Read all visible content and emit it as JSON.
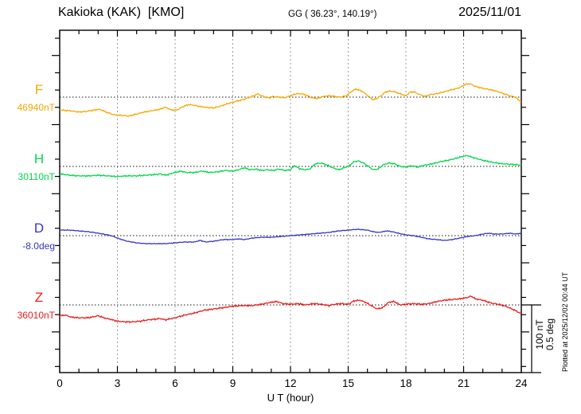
{
  "header": {
    "station_title": "Kakioka (KAK)  [KMO]",
    "coordinates": "GG ( 36.23°, 140.19°)",
    "date": "2025/11/01"
  },
  "chart_data": {
    "type": "line",
    "xlabel": "U T (hour)",
    "x_range": [
      0,
      24
    ],
    "x_ticks": [
      0,
      3,
      6,
      9,
      12,
      15,
      18,
      21,
      24
    ],
    "x_minor_tick_step": 1,
    "grid": "vertical dotted gridlines every 3 hours; dotted horizontal baseline for each trace",
    "scale_bar": {
      "label_line1": "100 nT",
      "label_line2": "0.5 deg",
      "nT_per_bar": 100,
      "deg_per_bar": 0.5
    },
    "series": [
      {
        "name": "F",
        "unit": "nT",
        "baseline_value": 46940,
        "baseline_label": "46940nT",
        "color": "#f7a800",
        "points": [
          [
            0,
            46921
          ],
          [
            0.5,
            46920
          ],
          [
            1,
            46918
          ],
          [
            1.4,
            46919
          ],
          [
            1.8,
            46921
          ],
          [
            2.1,
            46922
          ],
          [
            2.4,
            46918
          ],
          [
            2.8,
            46914
          ],
          [
            3.2,
            46913
          ],
          [
            3.6,
            46912
          ],
          [
            4,
            46915
          ],
          [
            4.4,
            46918
          ],
          [
            4.8,
            46920
          ],
          [
            5.2,
            46922
          ],
          [
            5.5,
            46925
          ],
          [
            5.8,
            46921
          ],
          [
            6.1,
            46921
          ],
          [
            6.4,
            46926
          ],
          [
            6.7,
            46929
          ],
          [
            7,
            46928
          ],
          [
            7.3,
            46926
          ],
          [
            7.6,
            46925
          ],
          [
            8,
            46924
          ],
          [
            8.4,
            46927
          ],
          [
            8.8,
            46931
          ],
          [
            9.2,
            46934
          ],
          [
            9.5,
            46936
          ],
          [
            9.8,
            46939
          ],
          [
            10.1,
            46942
          ],
          [
            10.3,
            46945
          ],
          [
            10.5,
            46942
          ],
          [
            10.7,
            46940
          ],
          [
            10.9,
            46939
          ],
          [
            11.1,
            46941
          ],
          [
            11.4,
            46940
          ],
          [
            11.7,
            46939
          ],
          [
            12,
            46942
          ],
          [
            12.3,
            46945
          ],
          [
            12.6,
            46945
          ],
          [
            12.9,
            46942
          ],
          [
            13.1,
            46939
          ],
          [
            13.4,
            46938
          ],
          [
            13.7,
            46941
          ],
          [
            14,
            46942
          ],
          [
            14.3,
            46941
          ],
          [
            14.6,
            46940
          ],
          [
            14.9,
            46942
          ],
          [
            15.2,
            46949
          ],
          [
            15.4,
            46952
          ],
          [
            15.7,
            46949
          ],
          [
            15.9,
            46945
          ],
          [
            16.1,
            46940
          ],
          [
            16.3,
            46936
          ],
          [
            16.5,
            46938
          ],
          [
            16.7,
            46942
          ],
          [
            16.9,
            46947
          ],
          [
            17.1,
            46949
          ],
          [
            17.4,
            46948
          ],
          [
            17.7,
            46945
          ],
          [
            18,
            46942
          ],
          [
            18.2,
            46947
          ],
          [
            18.4,
            46948
          ],
          [
            18.7,
            46944
          ],
          [
            19,
            46941
          ],
          [
            19.3,
            46944
          ],
          [
            19.6,
            46945
          ],
          [
            20,
            46948
          ],
          [
            20.4,
            46951
          ],
          [
            20.8,
            46954
          ],
          [
            21.1,
            46959
          ],
          [
            21.3,
            46960
          ],
          [
            21.6,
            46956
          ],
          [
            22,
            46953
          ],
          [
            22.4,
            46951
          ],
          [
            22.8,
            46948
          ],
          [
            23.1,
            46945
          ],
          [
            23.4,
            46942
          ],
          [
            23.7,
            46940
          ],
          [
            23.85,
            46936
          ],
          [
            24,
            46933
          ]
        ]
      },
      {
        "name": "H",
        "unit": "nT",
        "baseline_value": 30110,
        "baseline_label": "30110nT",
        "color": "#00d84a",
        "points": [
          [
            0,
            30099
          ],
          [
            0.5,
            30097
          ],
          [
            1,
            30096
          ],
          [
            1.5,
            30096
          ],
          [
            2,
            30097
          ],
          [
            2.5,
            30096
          ],
          [
            3,
            30095
          ],
          [
            3.5,
            30096
          ],
          [
            4,
            30096
          ],
          [
            4.5,
            30097
          ],
          [
            5,
            30098
          ],
          [
            5.2,
            30099
          ],
          [
            5.5,
            30097
          ],
          [
            6,
            30101
          ],
          [
            6.3,
            30103
          ],
          [
            6.6,
            30101
          ],
          [
            7,
            30101
          ],
          [
            7.4,
            30103
          ],
          [
            7.8,
            30101
          ],
          [
            8.2,
            30102
          ],
          [
            8.6,
            30104
          ],
          [
            9,
            30103
          ],
          [
            9.3,
            30105
          ],
          [
            9.6,
            30108
          ],
          [
            9.9,
            30105
          ],
          [
            10.2,
            30106
          ],
          [
            10.5,
            30104
          ],
          [
            10.8,
            30105
          ],
          [
            11.1,
            30104
          ],
          [
            11.4,
            30106
          ],
          [
            11.7,
            30104
          ],
          [
            12,
            30105
          ],
          [
            12.2,
            30111
          ],
          [
            12.45,
            30107
          ],
          [
            12.7,
            30105
          ],
          [
            13,
            30106
          ],
          [
            13.3,
            30114
          ],
          [
            13.6,
            30115
          ],
          [
            13.9,
            30112
          ],
          [
            14.2,
            30108
          ],
          [
            14.5,
            30105
          ],
          [
            14.8,
            30108
          ],
          [
            15.05,
            30111
          ],
          [
            15.3,
            30117
          ],
          [
            15.55,
            30118
          ],
          [
            15.8,
            30115
          ],
          [
            16.05,
            30110
          ],
          [
            16.3,
            30105
          ],
          [
            16.55,
            30106
          ],
          [
            16.8,
            30112
          ],
          [
            17.1,
            30115
          ],
          [
            17.4,
            30114
          ],
          [
            17.7,
            30110
          ],
          [
            18,
            30109
          ],
          [
            18.3,
            30111
          ],
          [
            18.6,
            30109
          ],
          [
            19,
            30112
          ],
          [
            19.4,
            30114
          ],
          [
            19.8,
            30117
          ],
          [
            20.2,
            30119
          ],
          [
            20.6,
            30122
          ],
          [
            21,
            30125
          ],
          [
            21.2,
            30126
          ],
          [
            21.5,
            30123
          ],
          [
            22,
            30119
          ],
          [
            22.5,
            30116
          ],
          [
            23,
            30114
          ],
          [
            23.5,
            30113
          ],
          [
            24,
            30112
          ]
        ]
      },
      {
        "name": "D",
        "unit": "deg",
        "baseline_value": -8.0,
        "baseline_label": "-8.0deg",
        "color": "#3434cc",
        "points": [
          [
            0,
            -7.959
          ],
          [
            0.5,
            -7.959
          ],
          [
            1,
            -7.965
          ],
          [
            1.5,
            -7.971
          ],
          [
            2,
            -7.982
          ],
          [
            2.5,
            -7.994
          ],
          [
            2.8,
            -8.006
          ],
          [
            3,
            -8.018
          ],
          [
            3.5,
            -8.041
          ],
          [
            4,
            -8.053
          ],
          [
            4.5,
            -8.059
          ],
          [
            5,
            -8.059
          ],
          [
            5.5,
            -8.059
          ],
          [
            6,
            -8.053
          ],
          [
            6.5,
            -8.047
          ],
          [
            7,
            -8.047
          ],
          [
            7.3,
            -8.035
          ],
          [
            7.6,
            -8.047
          ],
          [
            8,
            -8.041
          ],
          [
            8.5,
            -8.029
          ],
          [
            9,
            -8.029
          ],
          [
            9.3,
            -8.024
          ],
          [
            9.6,
            -8.029
          ],
          [
            10,
            -8.018
          ],
          [
            10.5,
            -8.012
          ],
          [
            11,
            -8.012
          ],
          [
            11.5,
            -8.006
          ],
          [
            12,
            -8.0
          ],
          [
            12.5,
            -7.994
          ],
          [
            13,
            -7.988
          ],
          [
            13.5,
            -7.982
          ],
          [
            14,
            -7.976
          ],
          [
            14.5,
            -7.965
          ],
          [
            15,
            -7.959
          ],
          [
            15.5,
            -7.953
          ],
          [
            16,
            -7.959
          ],
          [
            16.3,
            -7.971
          ],
          [
            16.6,
            -7.976
          ],
          [
            17,
            -7.965
          ],
          [
            17.3,
            -7.971
          ],
          [
            17.6,
            -7.982
          ],
          [
            18,
            -7.994
          ],
          [
            18.4,
            -8.0
          ],
          [
            18.8,
            -8.012
          ],
          [
            19.2,
            -8.024
          ],
          [
            19.6,
            -8.029
          ],
          [
            20,
            -8.035
          ],
          [
            20.4,
            -8.029
          ],
          [
            20.8,
            -8.018
          ],
          [
            21.2,
            -8.006
          ],
          [
            21.6,
            -8.0
          ],
          [
            22,
            -7.988
          ],
          [
            22.3,
            -7.982
          ],
          [
            22.6,
            -7.988
          ],
          [
            23,
            -7.988
          ],
          [
            23.4,
            -7.982
          ],
          [
            23.7,
            -7.988
          ],
          [
            24,
            -7.982
          ]
        ]
      },
      {
        "name": "Z",
        "unit": "nT",
        "baseline_value": 36010,
        "baseline_label": "36010nT",
        "color": "#ee1c1c",
        "points": [
          [
            0,
            35994
          ],
          [
            0.3,
            35995
          ],
          [
            0.6,
            35992
          ],
          [
            1,
            35991
          ],
          [
            1.5,
            35991
          ],
          [
            2,
            35994
          ],
          [
            2.3,
            35991
          ],
          [
            2.6,
            35989
          ],
          [
            3,
            35986
          ],
          [
            3.4,
            35985
          ],
          [
            3.8,
            35985
          ],
          [
            4.2,
            35986
          ],
          [
            4.6,
            35988
          ],
          [
            5,
            35989
          ],
          [
            5.2,
            35990
          ],
          [
            5.5,
            35988
          ],
          [
            6,
            35991
          ],
          [
            6.5,
            35995
          ],
          [
            7,
            35998
          ],
          [
            7.5,
            36002
          ],
          [
            8,
            36004
          ],
          [
            8.5,
            36006
          ],
          [
            9,
            36008
          ],
          [
            9.5,
            36009
          ],
          [
            10,
            36009
          ],
          [
            10.5,
            36011
          ],
          [
            11,
            36014
          ],
          [
            11.3,
            36015
          ],
          [
            11.6,
            36012
          ],
          [
            12,
            36011
          ],
          [
            12.4,
            36012
          ],
          [
            12.8,
            36010
          ],
          [
            13.2,
            36012
          ],
          [
            13.6,
            36011
          ],
          [
            14,
            36009
          ],
          [
            14.3,
            36011
          ],
          [
            14.6,
            36012
          ],
          [
            15,
            36011
          ],
          [
            15.3,
            36016
          ],
          [
            15.6,
            36017
          ],
          [
            15.9,
            36014
          ],
          [
            16.2,
            36009
          ],
          [
            16.5,
            36004
          ],
          [
            16.8,
            36006
          ],
          [
            17.1,
            36014
          ],
          [
            17.4,
            36015
          ],
          [
            17.7,
            36010
          ],
          [
            18,
            36011
          ],
          [
            18.4,
            36012
          ],
          [
            18.8,
            36011
          ],
          [
            19.2,
            36012
          ],
          [
            19.6,
            36015
          ],
          [
            20,
            36017
          ],
          [
            20.4,
            36018
          ],
          [
            20.8,
            36019
          ],
          [
            21.2,
            36021
          ],
          [
            21.4,
            36023
          ],
          [
            21.6,
            36019
          ],
          [
            22,
            36017
          ],
          [
            22.4,
            36013
          ],
          [
            22.8,
            36011
          ],
          [
            23.2,
            36008
          ],
          [
            23.6,
            36003
          ],
          [
            24,
            35997
          ]
        ]
      }
    ]
  },
  "footer": {
    "plotted_at": "Plotted at 2025/12/02 00:44 UT"
  }
}
